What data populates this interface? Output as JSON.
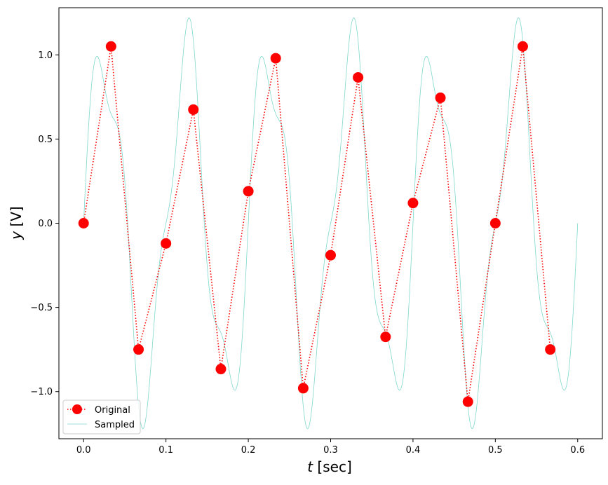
{
  "chart_data": {
    "type": "line",
    "xlabel_var": "t",
    "xlabel_unit": " [sec]",
    "ylabel_var": "y",
    "ylabel_unit": " [V]",
    "xlim": [
      -0.03,
      0.63
    ],
    "ylim": [
      -1.28,
      1.28
    ],
    "x_ticks": [
      0.0,
      0.1,
      0.2,
      0.3,
      0.4,
      0.5,
      0.6
    ],
    "x_tick_labels": [
      "0.0",
      "0.1",
      "0.2",
      "0.3",
      "0.4",
      "0.5",
      "0.6"
    ],
    "y_ticks": [
      1.0,
      0.5,
      0.0,
      -0.5,
      -1.0
    ],
    "y_tick_labels": [
      "1.0",
      "0.5",
      "0.0",
      "−0.5",
      "−1.0"
    ],
    "grid": false,
    "legend_position": "lower-left",
    "series": [
      {
        "name": "Original",
        "style": "dotted line with circle markers",
        "color": "#ff0000",
        "x": [
          0.0,
          0.0333,
          0.0667,
          0.1,
          0.1333,
          0.1667,
          0.2,
          0.2333,
          0.2667,
          0.3,
          0.3333,
          0.3667,
          0.4,
          0.4333,
          0.4667,
          0.5,
          0.5333,
          0.5667
        ],
        "y": [
          0.0,
          1.05,
          -0.75,
          -0.12,
          0.675,
          -0.866,
          0.19,
          0.98,
          -0.98,
          -0.19,
          0.866,
          -0.675,
          0.12,
          0.745,
          -1.06,
          0.0,
          1.05,
          -0.75
        ]
      },
      {
        "name": "Sampled",
        "style": "thin solid line",
        "color": "#7fd8cc",
        "x_start": 0.0,
        "x_end": 0.6,
        "components": [
          {
            "amplitude": 1.0,
            "frequency_hz": 10
          },
          {
            "amplitude": 0.25,
            "frequency_hz": 25
          }
        ]
      }
    ]
  }
}
